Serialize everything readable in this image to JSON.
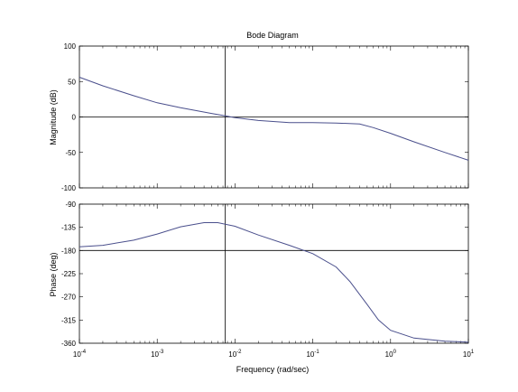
{
  "chart_data": [
    {
      "type": "line",
      "title": "Bode Diagram",
      "ylabel": "Magnitude (dB)",
      "xlabel": "",
      "x_scale": "log",
      "xlim": [
        0.0001,
        10
      ],
      "ylim": [
        -100,
        100
      ],
      "yticks": [
        100,
        50,
        0,
        -50,
        -100
      ],
      "xticks": [
        "10^-4",
        "10^-3",
        "10^-2",
        "10^-1",
        "10^0",
        "10^1"
      ],
      "grid": false,
      "reference_lines": {
        "y": 0,
        "x": 0.0075
      },
      "series": [
        {
          "color": "#4a4f8c",
          "x": [
            0.0001,
            0.0002,
            0.0005,
            0.001,
            0.002,
            0.005,
            0.0075,
            0.01,
            0.02,
            0.05,
            0.1,
            0.2,
            0.4,
            0.6,
            1,
            2,
            5,
            10
          ],
          "y": [
            56,
            44,
            30,
            20,
            13,
            5,
            1.5,
            -1,
            -5,
            -8,
            -8,
            -8.5,
            -10,
            -15,
            -23,
            -35,
            -50,
            -61
          ]
        }
      ]
    },
    {
      "type": "line",
      "title": "",
      "ylabel": "Phase (deg)",
      "xlabel": "Frequency  (rad/sec)",
      "x_scale": "log",
      "xlim": [
        0.0001,
        10
      ],
      "ylim": [
        -360,
        -90
      ],
      "yticks": [
        -90,
        -135,
        -180,
        -225,
        -270,
        -315,
        -360
      ],
      "xticks": [
        "10^-4",
        "10^-3",
        "10^-2",
        "10^-1",
        "10^0",
        "10^1"
      ],
      "grid": false,
      "reference_lines": {
        "y": -180,
        "x": 0.0075
      },
      "series": [
        {
          "color": "#4a4f8c",
          "x": [
            0.0001,
            0.0002,
            0.0005,
            0.001,
            0.002,
            0.004,
            0.006,
            0.01,
            0.02,
            0.05,
            0.1,
            0.2,
            0.3,
            0.5,
            0.7,
            1,
            2,
            5,
            10
          ],
          "y": [
            -173,
            -170,
            -160,
            -148,
            -134,
            -126,
            -126,
            -133,
            -150,
            -170,
            -186,
            -212,
            -240,
            -285,
            -315,
            -335,
            -350,
            -356,
            -358
          ]
        }
      ]
    }
  ]
}
